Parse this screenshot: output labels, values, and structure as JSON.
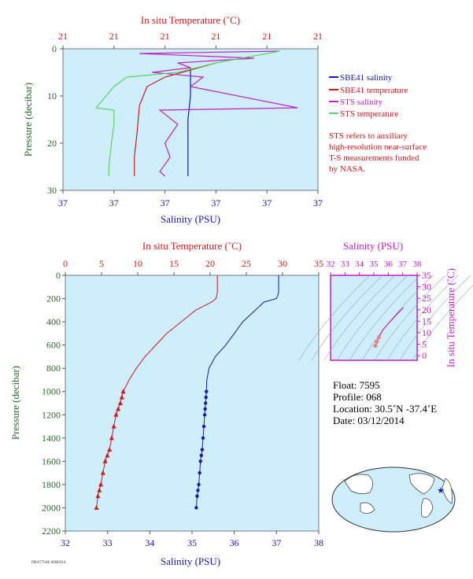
{
  "top_panel": {
    "top_axis_title": "In situ Temperature (˚C)",
    "top_tick_labels": [
      "21",
      "21",
      "21",
      "21",
      "21",
      "21"
    ],
    "bottom_axis_title": "Salinity (PSU)",
    "bottom_tick_labels": [
      "37",
      "37",
      "37",
      "37",
      "37",
      "37"
    ],
    "y_axis_title": "Pressure (decibar)",
    "y_tick_labels": [
      "0",
      "10",
      "20",
      "30"
    ],
    "legend": [
      {
        "label": "SBE41 salinity",
        "color": "#1a1aa8"
      },
      {
        "label": "SBE41 temperature",
        "color": "#d11a1a"
      },
      {
        "label": "STS salinity",
        "color": "#c41fc4"
      },
      {
        "label": "STS temperature",
        "color": "#5fd35f"
      }
    ],
    "note": [
      "STS refers to auxiliary",
      "high-resolution near-surface",
      "T-S measurements funded",
      "by NASA."
    ]
  },
  "bottom_panel": {
    "top_axis_title": "In situ Temperature (˚C)",
    "bottom_axis_title": "Salinity (PSU)",
    "y_axis_title": "Pressure (decibar)"
  },
  "ts_panel": {
    "top_axis_title": "Salinity (PSU)",
    "right_axis_title": "In situ Temperature (˚C)"
  },
  "float_info": {
    "float": "Float:  7595",
    "profile": "Profile:  068",
    "location": "Location:  30.5˚N  -37.4˚E",
    "date": "Date:  03/12/2014"
  },
  "footer_code": "P8047764E.0068/014",
  "colors": {
    "plot_bg": "#cdeefa",
    "temperature": "#d11a1a",
    "salinity": "#1a1aa8",
    "sts_salinity": "#c41fc4",
    "sts_temperature": "#5fd35f",
    "pressure_axis": "#2a6b2a"
  },
  "chart_data": [
    {
      "type": "line",
      "panel": "top",
      "title": "",
      "ylabel": "Pressure (decibar)",
      "ylim": [
        30,
        0
      ],
      "y_ticks": [
        0,
        10,
        20,
        30
      ],
      "series": [
        {
          "name": "SBE41 salinity",
          "color": "#1a1aa8",
          "x_frac": [
            0.5,
            0.5,
            0.49,
            0.49,
            0.49,
            0.49
          ],
          "pressure": [
            4,
            10,
            15,
            20,
            25,
            27
          ]
        },
        {
          "name": "SBE41 temperature",
          "color": "#d11a1a",
          "x_frac": [
            0.6,
            0.4,
            0.33,
            0.3,
            0.29,
            0.28,
            0.28
          ],
          "pressure": [
            3,
            6,
            8,
            12,
            18,
            23,
            27
          ]
        },
        {
          "name": "STS salinity",
          "color": "#c41fc4",
          "x_frac": [
            0.85,
            0.3,
            0.75,
            0.45,
            0.5,
            0.35,
            0.55,
            0.5,
            0.92,
            0.38,
            0.45,
            0.4,
            0.42,
            0.38,
            0.4
          ],
          "pressure": [
            0.5,
            1,
            2,
            3,
            4,
            5,
            6,
            8,
            12.5,
            13,
            16,
            20,
            23,
            26,
            27
          ]
        },
        {
          "name": "STS temperature",
          "color": "#5fd35f",
          "x_frac": [
            0.85,
            0.6,
            0.45,
            0.25,
            0.2,
            0.13,
            0.2,
            0.2,
            0.19,
            0.18,
            0.18
          ],
          "pressure": [
            0.5,
            3,
            5,
            6,
            8,
            12.5,
            13,
            16,
            20,
            25,
            27
          ]
        }
      ]
    },
    {
      "type": "line",
      "panel": "bottom",
      "title": "",
      "xlabel": "Salinity (PSU)",
      "ylabel": "Pressure (decibar)",
      "xlim": [
        32,
        38
      ],
      "temp_lim": [
        0,
        35
      ],
      "ylim": [
        2200,
        0
      ],
      "x_ticks": [
        32,
        33,
        34,
        35,
        36,
        37,
        38
      ],
      "temp_ticks": [
        0,
        5,
        10,
        15,
        20,
        25,
        30,
        35
      ],
      "y_ticks": [
        0,
        200,
        400,
        600,
        800,
        1000,
        1200,
        1400,
        1600,
        1800,
        2000,
        2200
      ],
      "series": [
        {
          "name": "Temperature",
          "axis": "temperature",
          "color": "#d11a1a",
          "x": [
            21,
            21,
            20.8,
            20.2,
            18,
            16,
            14,
            12.5,
            11,
            9.8,
            8.8,
            8,
            7.8,
            7.6,
            7.3,
            7,
            6.7,
            6.4,
            6.1,
            5.8,
            5.5,
            5.2,
            4.9,
            4.7,
            4.5,
            4.3
          ],
          "pressure": [
            0,
            150,
            200,
            230,
            300,
            400,
            500,
            600,
            700,
            800,
            900,
            1000,
            1050,
            1100,
            1150,
            1200,
            1300,
            1400,
            1500,
            1550,
            1600,
            1700,
            1800,
            1850,
            1900,
            2000
          ],
          "markers_from": 1000
        },
        {
          "name": "Salinity",
          "axis": "salinity",
          "color": "#1a1aa8",
          "x": [
            37.05,
            37.05,
            37.0,
            36.7,
            36.5,
            36.2,
            36.0,
            35.8,
            35.55,
            35.4,
            35.35,
            35.34,
            35.33,
            35.32,
            35.31,
            35.3,
            35.28,
            35.26,
            35.24,
            35.22,
            35.2,
            35.18,
            35.16,
            35.14,
            35.12,
            35.1
          ],
          "pressure": [
            0,
            150,
            200,
            230,
            300,
            400,
            500,
            600,
            700,
            800,
            900,
            1000,
            1050,
            1100,
            1150,
            1200,
            1300,
            1400,
            1500,
            1550,
            1600,
            1700,
            1800,
            1850,
            1900,
            2000
          ],
          "markers_from": 1000
        }
      ]
    },
    {
      "type": "scatter",
      "panel": "ts",
      "title": "",
      "xlabel": "Salinity (PSU)",
      "ylabel": "In situ Temperature (˚C)",
      "xlim": [
        32,
        38
      ],
      "ylim": [
        -2,
        35
      ],
      "x_ticks": [
        32,
        33,
        34,
        35,
        36,
        37,
        38
      ],
      "y_ticks": [
        0,
        5,
        10,
        15,
        20,
        25,
        30,
        35
      ],
      "series": [
        {
          "name": "T-S",
          "color": "#c41fc4",
          "x": [
            37.05,
            36.6,
            36.0,
            35.6,
            35.35,
            35.2,
            35.1
          ],
          "y": [
            21,
            18,
            14,
            11,
            8,
            6,
            4.3
          ]
        }
      ]
    }
  ]
}
